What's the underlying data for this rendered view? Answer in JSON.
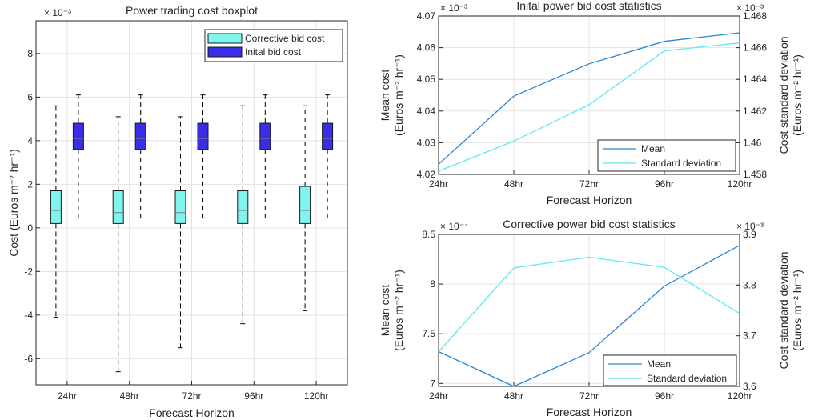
{
  "chart_data": [
    {
      "type": "boxplot",
      "title": "Power trading cost boxplot",
      "xlabel": "Forecast Horizon",
      "ylabel": "Cost (Euros m⁻² hr⁻¹)",
      "y_exponent": "× 10⁻³",
      "categories": [
        "24hr",
        "48hr",
        "72hr",
        "96hr",
        "120hr"
      ],
      "ylim": [
        -7.2,
        9.5
      ],
      "yticks": [
        -6,
        -4,
        -2,
        0,
        2,
        4,
        6,
        8
      ],
      "grid": true,
      "legend_position": "top-right",
      "colors": {
        "corrective": "#7ff5ee",
        "inital": "#3a2de6",
        "median": "#7a7a7a",
        "whisker": "#000000"
      },
      "series": [
        {
          "name": "Corrective bid cost",
          "boxes": [
            {
              "whisker_low": -4.1,
              "q1": 0.2,
              "median": 0.8,
              "q3": 1.7,
              "whisker_high": 5.6
            },
            {
              "whisker_low": -6.6,
              "q1": 0.2,
              "median": 0.7,
              "q3": 1.7,
              "whisker_high": 5.1
            },
            {
              "whisker_low": -5.5,
              "q1": 0.2,
              "median": 0.7,
              "q3": 1.7,
              "whisker_high": 5.1
            },
            {
              "whisker_low": -4.4,
              "q1": 0.2,
              "median": 0.8,
              "q3": 1.7,
              "whisker_high": 5.6
            },
            {
              "whisker_low": -3.8,
              "q1": 0.2,
              "median": 0.8,
              "q3": 1.9,
              "whisker_high": 5.6
            }
          ]
        },
        {
          "name": "Inital bid cost",
          "boxes": [
            {
              "whisker_low": 0.45,
              "q1": 3.6,
              "median": 4.1,
              "q3": 4.8,
              "whisker_high": 6.1
            },
            {
              "whisker_low": 0.45,
              "q1": 3.6,
              "median": 4.1,
              "q3": 4.8,
              "whisker_high": 6.1
            },
            {
              "whisker_low": 0.45,
              "q1": 3.6,
              "median": 4.1,
              "q3": 4.8,
              "whisker_high": 6.1
            },
            {
              "whisker_low": 0.45,
              "q1": 3.6,
              "median": 4.1,
              "q3": 4.8,
              "whisker_high": 6.1
            },
            {
              "whisker_low": 0.45,
              "q1": 3.6,
              "median": 4.1,
              "q3": 4.8,
              "whisker_high": 6.1
            }
          ]
        }
      ]
    },
    {
      "type": "line",
      "title": "Inital power bid cost statistics",
      "xlabel": "Forecast Horizon",
      "ylabel_left_line1": "Mean cost",
      "ylabel_left_line2": "(Euros m⁻² hr⁻¹)",
      "ylabel_right_line1": "Cost standard deviation",
      "ylabel_right_line2": "(Euros m⁻² hr⁻¹)",
      "y_exponent_left": "× 10⁻³",
      "y_exponent_right": "× 10⁻³",
      "categories": [
        "24hr",
        "48hr",
        "72hr",
        "96hr",
        "120hr"
      ],
      "ylim_left": [
        4.02,
        4.07
      ],
      "yticks_left": [
        "4.02",
        "4.03",
        "4.04",
        "4.05",
        "4.06",
        "4.07"
      ],
      "ylim_right": [
        1.458,
        1.468
      ],
      "yticks_right": [
        "1.458",
        "1.46",
        "1.462",
        "1.464",
        "1.466",
        "1.468"
      ],
      "grid": true,
      "legend_position": "bottom-right",
      "series": [
        {
          "name": "Mean",
          "axis": "left",
          "color": "#2a86d6",
          "values": [
            4.0232,
            4.0447,
            4.0549,
            4.062,
            4.0647
          ]
        },
        {
          "name": "Standard deviation",
          "axis": "right",
          "color": "#5ee8ef",
          "values": [
            1.4582,
            1.4601,
            1.4624,
            1.4658,
            1.4663
          ]
        }
      ]
    },
    {
      "type": "line",
      "title": "Corrective power bid cost statistics",
      "xlabel": "Forecast Horizon",
      "ylabel_left_line1": "Mean cost",
      "ylabel_left_line2": "(Euros m⁻² hr⁻¹)",
      "ylabel_right_line1": "Cost standard deviation",
      "ylabel_right_line2": "(Euros m⁻² hr⁻¹)",
      "y_exponent_left": "× 10⁻⁴",
      "y_exponent_right": "× 10⁻³",
      "categories": [
        "24hr",
        "48hr",
        "72hr",
        "96hr",
        "120hr"
      ],
      "ylim_left": [
        6.97,
        8.5
      ],
      "yticks_left": [
        "7",
        "7.5",
        "8",
        "8.5"
      ],
      "ylim_right": [
        3.6,
        3.9
      ],
      "yticks_right": [
        "3.6",
        "3.7",
        "3.8",
        "3.9"
      ],
      "grid": true,
      "legend_position": "bottom-right",
      "series": [
        {
          "name": "Mean",
          "axis": "left",
          "color": "#2a86d6",
          "values": [
            7.32,
            6.97,
            7.31,
            7.98,
            8.39
          ]
        },
        {
          "name": "Standard deviation",
          "axis": "right",
          "color": "#5ee8ef",
          "values": [
            3.668,
            3.834,
            3.855,
            3.835,
            3.744
          ]
        }
      ]
    }
  ]
}
